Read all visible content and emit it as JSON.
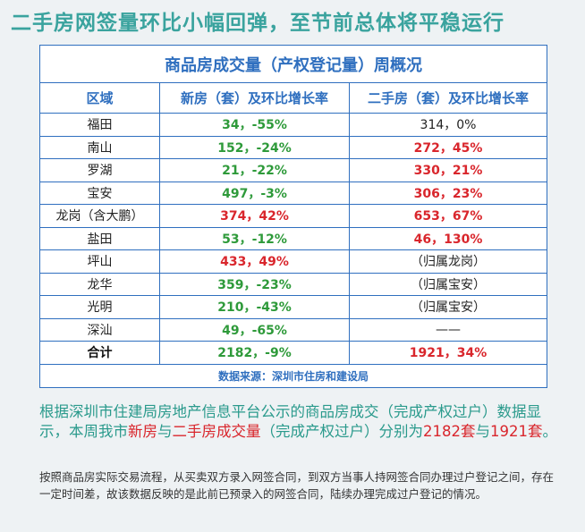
{
  "header": {
    "title": "二手房网签量环比小幅回弹，至节前总体将平稳运行"
  },
  "table": {
    "title": "商品房成交量（产权登记量）周概况",
    "columns": [
      "区域",
      "新房（套）及环比增长率",
      "二手房（套）及环比增长率"
    ],
    "rows": [
      [
        "福田",
        "34，-55%",
        "314，0%"
      ],
      [
        "南山",
        "152，-24%",
        "272，45%"
      ],
      [
        "罗湖",
        "21，-22%",
        "330，21%"
      ],
      [
        "宝安",
        "497，-3%",
        "306，23%"
      ],
      [
        "龙岗（含大鹏）",
        "374，42%",
        "653，67%"
      ],
      [
        "盐田",
        "53，-12%",
        "46，130%"
      ],
      [
        "坪山",
        "433，49%",
        "（归属龙岗）"
      ],
      [
        "龙华",
        "359，-23%",
        "（归属宝安）"
      ],
      [
        "光明",
        "210，-43%",
        "（归属宝安）"
      ],
      [
        "深汕",
        "49，-65%",
        "——"
      ],
      [
        "合计",
        "2182，-9%",
        "1921，34%"
      ]
    ],
    "cell_colors": [
      [
        "#222",
        "#2e9a3a",
        "#222"
      ],
      [
        "#222",
        "#2e9a3a",
        "#d9262c"
      ],
      [
        "#222",
        "#2e9a3a",
        "#d9262c"
      ],
      [
        "#222",
        "#2e9a3a",
        "#d9262c"
      ],
      [
        "#222",
        "#d9262c",
        "#d9262c"
      ],
      [
        "#222",
        "#2e9a3a",
        "#d9262c"
      ],
      [
        "#222",
        "#d9262c",
        "#222"
      ],
      [
        "#222",
        "#2e9a3a",
        "#222"
      ],
      [
        "#222",
        "#2e9a3a",
        "#222"
      ],
      [
        "#222",
        "#2e9a3a",
        "#222"
      ],
      [
        "#111",
        "#2e9a3a",
        "#d9262c"
      ]
    ],
    "source": "数据来源：深圳市住房和建设局"
  },
  "summary": {
    "segments": [
      {
        "text": "根据深圳市住建局房地产信息平台公示的商品房成交（完成产权过户）数据显示，本周我市",
        "color": "#2a9a8c"
      },
      {
        "text": "新房",
        "color": "#d9262c"
      },
      {
        "text": "与",
        "color": "#2a9a8c"
      },
      {
        "text": "二手房成交量",
        "color": "#d9262c"
      },
      {
        "text": "（完成产权过户）分别为",
        "color": "#2a9a8c"
      },
      {
        "text": "2182套",
        "color": "#d9262c"
      },
      {
        "text": "与",
        "color": "#2a9a8c"
      },
      {
        "text": "1921套",
        "color": "#d9262c"
      },
      {
        "text": "。",
        "color": "#2a9a8c"
      }
    ]
  },
  "note": "按照商品房实际交易流程，从买卖双方录入网签合同，到双方当事人持网签合同办理过户登记之间，存在一定时间差，故该数据反映的是此前已预录入的网签合同，陆续办理完成过户登记的情况。"
}
